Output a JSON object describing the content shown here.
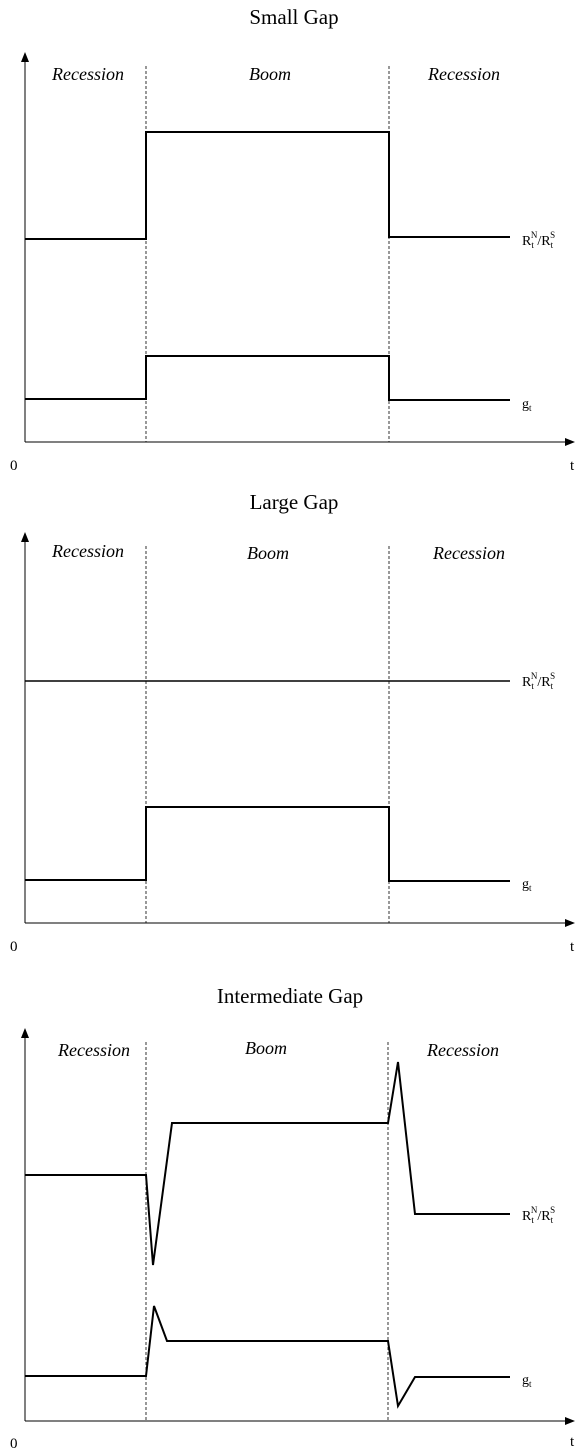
{
  "axis": {
    "origin": "0",
    "time": "t"
  },
  "labels": {
    "ratio": {
      "base1": "R",
      "sub1": "t",
      "sup1": "N",
      "slash": "/",
      "base2": "R",
      "sub2": "t",
      "sup2": "S"
    },
    "growth": {
      "base": "g",
      "sub": "t"
    }
  },
  "panels": [
    {
      "title": "Small Gap",
      "phases": [
        "Recession",
        "Boom",
        "Recession"
      ],
      "ratio_shape": "step-up-in-boom",
      "growth_shape": "step-up-in-boom"
    },
    {
      "title": "Large Gap",
      "phases": [
        "Recession",
        "Boom",
        "Recession"
      ],
      "ratio_shape": "flat",
      "growth_shape": "step-up-in-boom"
    },
    {
      "title": "Intermediate Gap",
      "phases": [
        "Recession",
        "Boom",
        "Recession"
      ],
      "ratio_shape": "dip-then-rise, spike-then-fall",
      "growth_shape": "spike-then-settle, dip-then-settle"
    }
  ]
}
